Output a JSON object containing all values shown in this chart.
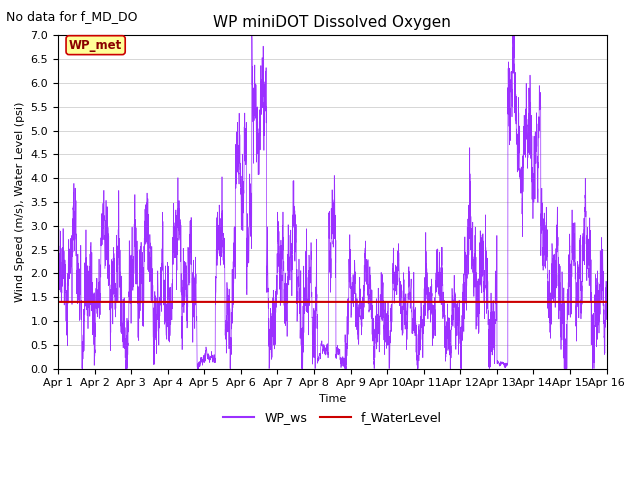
{
  "title": "WP miniDOT Dissolved Oxygen",
  "subtitle": "No data for f_MD_DO",
  "xlabel": "Time",
  "ylabel": "Wind Speed (m/s), Water Level (psi)",
  "ylim": [
    0.0,
    7.0
  ],
  "yticks": [
    0.0,
    0.5,
    1.0,
    1.5,
    2.0,
    2.5,
    3.0,
    3.5,
    4.0,
    4.5,
    5.0,
    5.5,
    6.0,
    6.5,
    7.0
  ],
  "xticklabels": [
    "Apr 1",
    "Apr 2",
    "Apr 3",
    "Apr 4",
    "Apr 5",
    "Apr 6",
    "Apr 7",
    "Apr 8",
    "Apr 9",
    "Apr 10",
    "Apr 11",
    "Apr 12",
    "Apr 13",
    "Apr 14",
    "Apr 15",
    "Apr 16"
  ],
  "wp_ws_color": "#9B30FF",
  "f_wl_color": "#CC0000",
  "legend_label_ws": "WP_ws",
  "legend_label_wl": "f_WaterLevel",
  "inset_label": "WP_met",
  "inset_bg": "#FFFF99",
  "inset_border": "#CC0000",
  "water_level_value": 1.4,
  "n_days": 15,
  "seed": 42,
  "title_fontsize": 11,
  "subtitle_fontsize": 9,
  "axis_label_fontsize": 8,
  "tick_fontsize": 8,
  "legend_fontsize": 9
}
